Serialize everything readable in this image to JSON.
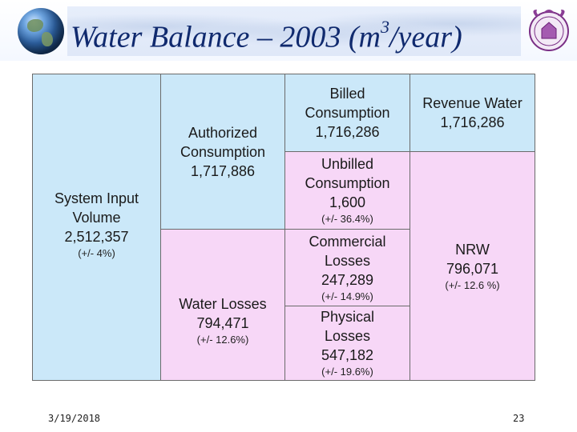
{
  "slide": {
    "title_main": "Water Balance – 2003 (m",
    "title_sup": "3",
    "title_end": "/year)",
    "date": "3/19/2018",
    "page_number": "23"
  },
  "colors": {
    "blue_cell": "#cbe8f9",
    "pink_cell": "#f7d7f7",
    "title": "#102a6e"
  },
  "balance": {
    "system_input": {
      "label1": "System Input",
      "label2": "Volume",
      "value": "2,512,357",
      "pct": "(+/- 4%)"
    },
    "authorized": {
      "label1": "Authorized",
      "label2": "Consumption",
      "value": "1,717,886"
    },
    "billed": {
      "label1": "Billed",
      "label2": "Consumption",
      "value": "1,716,286"
    },
    "revenue": {
      "label1": "Revenue  Water",
      "value": "1,716,286"
    },
    "unbilled": {
      "label1": "Unbilled",
      "label2": "Consumption",
      "value": "1,600",
      "pct": "(+/- 36.4%)"
    },
    "water_losses": {
      "label1": "Water Losses",
      "value": "794,471",
      "pct": "(+/- 12.6%)"
    },
    "commercial": {
      "label1": "Commercial",
      "label2": "Losses",
      "value": "247,289",
      "pct": "(+/- 14.9%)"
    },
    "physical": {
      "label1": "Physical",
      "label2": "Losses",
      "value": "547,182",
      "pct": "(+/- 19.6%)"
    },
    "nrw": {
      "label1": "NRW",
      "value": "796,071",
      "pct": "(+/- 12.6 %)"
    }
  }
}
